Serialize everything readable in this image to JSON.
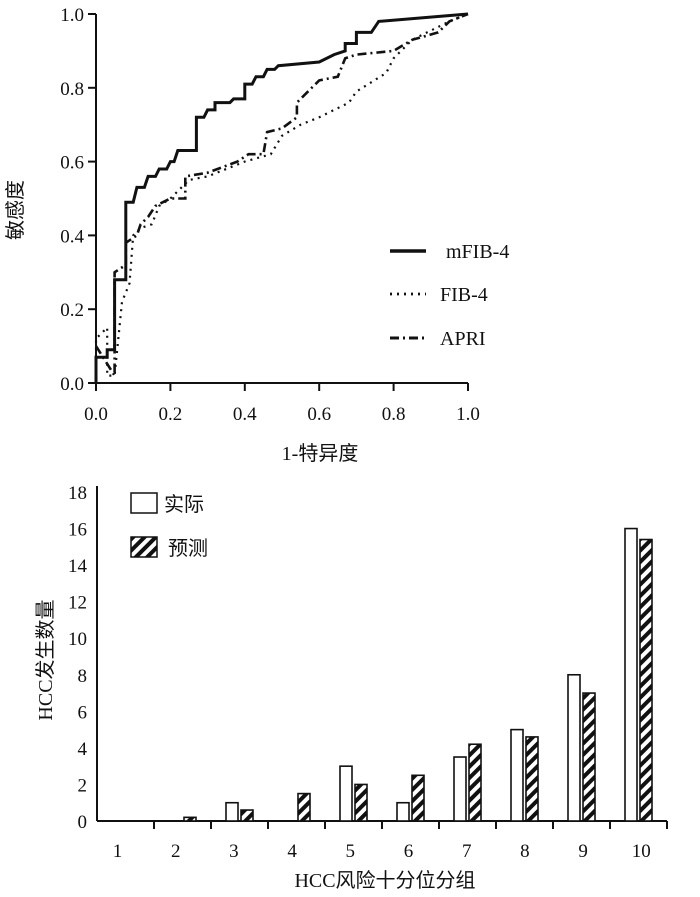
{
  "chart_data": [
    {
      "type": "line",
      "xlabel": "1-特异度",
      "ylabel": "敏感度",
      "xlim": [
        0,
        1
      ],
      "ylim": [
        0,
        1
      ],
      "xticks": [
        "0.0",
        "0.2",
        "0.4",
        "0.6",
        "0.8",
        "1.0"
      ],
      "yticks": [
        "0.0",
        "0.2",
        "0.4",
        "0.6",
        "0.8",
        "1.0"
      ],
      "grid": false,
      "legend_position": "right",
      "series": [
        {
          "name": "mFIB-4",
          "style": "solid",
          "points": [
            [
              0,
              0
            ],
            [
              0,
              0.07
            ],
            [
              0.03,
              0.07
            ],
            [
              0.03,
              0.09
            ],
            [
              0.05,
              0.09
            ],
            [
              0.05,
              0.28
            ],
            [
              0.08,
              0.28
            ],
            [
              0.08,
              0.49
            ],
            [
              0.1,
              0.49
            ],
            [
              0.11,
              0.53
            ],
            [
              0.13,
              0.53
            ],
            [
              0.14,
              0.56
            ],
            [
              0.16,
              0.56
            ],
            [
              0.17,
              0.58
            ],
            [
              0.19,
              0.58
            ],
            [
              0.2,
              0.6
            ],
            [
              0.21,
              0.6
            ],
            [
              0.22,
              0.63
            ],
            [
              0.27,
              0.63
            ],
            [
              0.27,
              0.72
            ],
            [
              0.29,
              0.72
            ],
            [
              0.3,
              0.74
            ],
            [
              0.32,
              0.74
            ],
            [
              0.32,
              0.76
            ],
            [
              0.36,
              0.76
            ],
            [
              0.37,
              0.77
            ],
            [
              0.4,
              0.77
            ],
            [
              0.4,
              0.81
            ],
            [
              0.42,
              0.81
            ],
            [
              0.43,
              0.83
            ],
            [
              0.45,
              0.83
            ],
            [
              0.46,
              0.85
            ],
            [
              0.48,
              0.85
            ],
            [
              0.49,
              0.86
            ],
            [
              0.6,
              0.87
            ],
            [
              0.64,
              0.89
            ],
            [
              0.67,
              0.9
            ],
            [
              0.67,
              0.92
            ],
            [
              0.7,
              0.92
            ],
            [
              0.7,
              0.95
            ],
            [
              0.74,
              0.95
            ],
            [
              0.76,
              0.98
            ],
            [
              1,
              1
            ]
          ]
        },
        {
          "name": "FIB-4",
          "style": "dotted",
          "points": [
            [
              0,
              0.09
            ],
            [
              0,
              0.12
            ],
            [
              0.03,
              0.15
            ],
            [
              0.03,
              0.02
            ],
            [
              0.05,
              0.02
            ],
            [
              0.07,
              0.22
            ],
            [
              0.09,
              0.27
            ],
            [
              0.1,
              0.4
            ],
            [
              0.12,
              0.42
            ],
            [
              0.15,
              0.43
            ],
            [
              0.17,
              0.48
            ],
            [
              0.2,
              0.5
            ],
            [
              0.25,
              0.55
            ],
            [
              0.3,
              0.56
            ],
            [
              0.4,
              0.6
            ],
            [
              0.47,
              0.62
            ],
            [
              0.5,
              0.67
            ],
            [
              0.55,
              0.7
            ],
            [
              0.6,
              0.72
            ],
            [
              0.68,
              0.76
            ],
            [
              0.7,
              0.79
            ],
            [
              0.78,
              0.84
            ],
            [
              0.8,
              0.88
            ],
            [
              0.85,
              0.93
            ],
            [
              0.95,
              0.98
            ],
            [
              1,
              1
            ]
          ]
        },
        {
          "name": "APRI",
          "style": "dashdot",
          "points": [
            [
              0,
              0.1
            ],
            [
              0.05,
              0.02
            ],
            [
              0.05,
              0.3
            ],
            [
              0.08,
              0.32
            ],
            [
              0.08,
              0.38
            ],
            [
              0.11,
              0.4
            ],
            [
              0.12,
              0.43
            ],
            [
              0.14,
              0.45
            ],
            [
              0.16,
              0.48
            ],
            [
              0.2,
              0.5
            ],
            [
              0.24,
              0.5
            ],
            [
              0.24,
              0.56
            ],
            [
              0.3,
              0.57
            ],
            [
              0.38,
              0.6
            ],
            [
              0.41,
              0.62
            ],
            [
              0.45,
              0.62
            ],
            [
              0.46,
              0.68
            ],
            [
              0.5,
              0.69
            ],
            [
              0.54,
              0.72
            ],
            [
              0.54,
              0.76
            ],
            [
              0.56,
              0.78
            ],
            [
              0.6,
              0.82
            ],
            [
              0.65,
              0.83
            ],
            [
              0.67,
              0.88
            ],
            [
              0.7,
              0.89
            ],
            [
              0.8,
              0.9
            ],
            [
              0.85,
              0.93
            ],
            [
              0.92,
              0.95
            ],
            [
              0.95,
              0.98
            ],
            [
              1,
              1
            ]
          ]
        }
      ]
    },
    {
      "type": "bar",
      "xlabel": "HCC风险十分位分组",
      "ylabel": "HCC发生数量",
      "categories": [
        "1",
        "2",
        "3",
        "4",
        "5",
        "6",
        "7",
        "8",
        "9",
        "10"
      ],
      "ylim": [
        0,
        18
      ],
      "yticks": [
        "0",
        "2",
        "4",
        "6",
        "8",
        "10",
        "12",
        "14",
        "16",
        "18"
      ],
      "grid": false,
      "legend_position": "top-left",
      "series": [
        {
          "name": "实际",
          "fill": "white",
          "values": [
            0,
            0,
            1,
            0,
            3,
            1,
            3.5,
            5,
            8,
            16
          ]
        },
        {
          "name": "预测",
          "fill": "hatched",
          "values": [
            0,
            0.2,
            0.6,
            1.5,
            2,
            2.5,
            4.2,
            4.6,
            7,
            15.4
          ]
        }
      ]
    }
  ]
}
